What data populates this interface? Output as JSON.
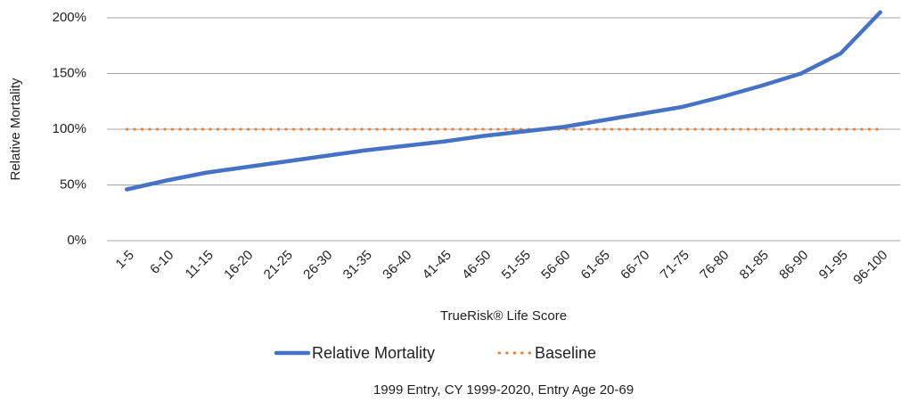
{
  "chart_data": {
    "type": "line",
    "x_label": "TrueRisk® Life Score",
    "y_label": "Relative Mortality",
    "footnote": "1999 Entry, CY 1999-2020, Entry Age 20-69",
    "categories": [
      "1-5",
      "6-10",
      "11-15",
      "16-20",
      "21-25",
      "26-30",
      "31-35",
      "36-40",
      "41-45",
      "46-50",
      "51-55",
      "56-60",
      "61-65",
      "66-70",
      "71-75",
      "76-80",
      "81-85",
      "86-90",
      "91-95",
      "96-100"
    ],
    "series": [
      {
        "name": "Relative Mortality",
        "color": "#4472C4",
        "style": "solid",
        "values": [
          46,
          54,
          61,
          66,
          71,
          76,
          81,
          85,
          89,
          94,
          98,
          102,
          108,
          114,
          120,
          129,
          139,
          150,
          168,
          205
        ]
      },
      {
        "name": "Baseline",
        "color": "#ED7D31",
        "style": "dotted",
        "values": [
          100,
          100,
          100,
          100,
          100,
          100,
          100,
          100,
          100,
          100,
          100,
          100,
          100,
          100,
          100,
          100,
          100,
          100,
          100,
          100
        ]
      }
    ],
    "ylim": [
      0,
      200
    ],
    "yticks": [
      {
        "value": 0,
        "label": "0%"
      },
      {
        "value": 50,
        "label": "50%"
      },
      {
        "value": 100,
        "label": "100%"
      },
      {
        "value": 150,
        "label": "150%"
      },
      {
        "value": 200,
        "label": "200%"
      }
    ],
    "grid": true
  }
}
